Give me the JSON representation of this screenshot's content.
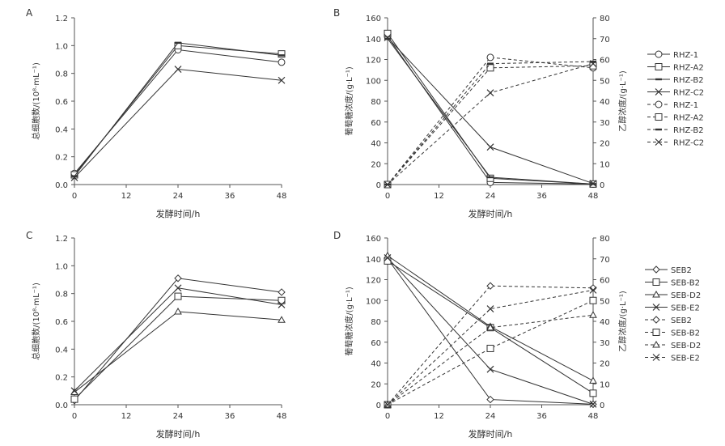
{
  "chart_data": [
    {
      "type": "line",
      "panel": "A",
      "x": [
        0,
        24,
        48
      ],
      "xlabel": "发酵时间/h",
      "ylabel": "总细胞数/(10⁸·mL⁻¹)",
      "xticks": [
        "0",
        "12",
        "24",
        "36",
        "48"
      ],
      "yticks": [
        "0.0",
        "0.2",
        "0.4",
        "0.6",
        "0.8",
        "1.0",
        "1.2"
      ],
      "xlim": [
        0,
        48
      ],
      "ylim": [
        0,
        1.2
      ],
      "series": [
        {
          "name": "RHZ-1",
          "marker": "circle",
          "dash": false,
          "values": [
            0.08,
            0.97,
            0.88
          ]
        },
        {
          "name": "RHZ-A2",
          "marker": "square",
          "dash": false,
          "values": [
            0.07,
            1.0,
            0.94
          ]
        },
        {
          "name": "RHZ-B2",
          "marker": "dash",
          "dash": false,
          "values": [
            0.06,
            1.02,
            0.93
          ]
        },
        {
          "name": "RHZ-C2",
          "marker": "x",
          "dash": false,
          "values": [
            0.05,
            0.83,
            0.75
          ]
        }
      ]
    },
    {
      "type": "line",
      "panel": "B",
      "x": [
        0,
        24,
        48
      ],
      "xlabel": "发酵时间/h",
      "ylabel": "葡萄糖浓度/(g·L⁻¹)",
      "y2label": "乙醇浓度/(g·L⁻¹)",
      "xticks": [
        "0",
        "12",
        "24",
        "36",
        "48"
      ],
      "yticks": [
        "0",
        "20",
        "40",
        "60",
        "80",
        "100",
        "120",
        "140",
        "160"
      ],
      "y2ticks": [
        "0",
        "10",
        "20",
        "30",
        "40",
        "50",
        "60",
        "70",
        "80"
      ],
      "xlim": [
        0,
        48
      ],
      "ylim": [
        0,
        160
      ],
      "y2lim": [
        0,
        80
      ],
      "series": [
        {
          "name": "RHZ-1",
          "marker": "circle",
          "dash": false,
          "axis": "left",
          "values": [
            142,
            2,
            0.5
          ]
        },
        {
          "name": "RHZ-A2",
          "marker": "square",
          "dash": false,
          "axis": "left",
          "values": [
            145,
            6,
            0.5
          ]
        },
        {
          "name": "RHZ-B2",
          "marker": "dash",
          "dash": false,
          "axis": "left",
          "values": [
            140,
            7,
            0.5
          ]
        },
        {
          "name": "RHZ-C2",
          "marker": "x",
          "dash": false,
          "axis": "left",
          "values": [
            141,
            36,
            1
          ]
        },
        {
          "name": "RHZ-1",
          "marker": "circle",
          "dash": true,
          "axis": "right",
          "values": [
            0,
            61,
            56
          ]
        },
        {
          "name": "RHZ-A2",
          "marker": "square",
          "dash": true,
          "axis": "right",
          "values": [
            0,
            56,
            57
          ]
        },
        {
          "name": "RHZ-B2",
          "marker": "dash",
          "dash": true,
          "axis": "right",
          "values": [
            0,
            58,
            59
          ]
        },
        {
          "name": "RHZ-C2",
          "marker": "x",
          "dash": true,
          "axis": "right",
          "values": [
            0,
            44,
            58
          ]
        }
      ],
      "legend": [
        "RHZ-1",
        "RHZ-A2",
        "RHZ-B2",
        "RHZ-C2",
        "RHZ-1",
        "RHZ-A2",
        "RHZ-B2",
        "RHZ-C2"
      ]
    },
    {
      "type": "line",
      "panel": "C",
      "x": [
        0,
        24,
        48
      ],
      "xlabel": "发酵时间/h",
      "ylabel": "总细胞数/(10⁸·mL⁻¹)",
      "xticks": [
        "0",
        "12",
        "24",
        "36",
        "48"
      ],
      "yticks": [
        "0.0",
        "0.2",
        "0.4",
        "0.6",
        "0.8",
        "1.0",
        "1.2"
      ],
      "xlim": [
        0,
        48
      ],
      "ylim": [
        0,
        1.2
      ],
      "series": [
        {
          "name": "SEB2",
          "marker": "diamond",
          "dash": false,
          "values": [
            0.03,
            0.91,
            0.81
          ]
        },
        {
          "name": "SEB-B2",
          "marker": "square",
          "dash": false,
          "values": [
            0.04,
            0.78,
            0.75
          ]
        },
        {
          "name": "SEB-D2",
          "marker": "triangle",
          "dash": false,
          "values": [
            0.09,
            0.67,
            0.61
          ]
        },
        {
          "name": "SEB-E2",
          "marker": "x",
          "dash": false,
          "values": [
            0.1,
            0.84,
            0.72
          ]
        }
      ]
    },
    {
      "type": "line",
      "panel": "D",
      "x": [
        0,
        24,
        48
      ],
      "xlabel": "发酵时间/h",
      "ylabel": "葡萄糖浓度/(g·L⁻¹)",
      "y2label": "乙醇浓度/(g·L⁻¹)",
      "xticks": [
        "0",
        "12",
        "24",
        "36",
        "48"
      ],
      "yticks": [
        "0",
        "20",
        "40",
        "60",
        "80",
        "100",
        "120",
        "140",
        "160"
      ],
      "y2ticks": [
        "0",
        "10",
        "20",
        "30",
        "40",
        "50",
        "60",
        "70",
        "80"
      ],
      "xlim": [
        0,
        48
      ],
      "ylim": [
        0,
        160
      ],
      "y2lim": [
        0,
        80
      ],
      "series": [
        {
          "name": "SEB2",
          "marker": "diamond",
          "dash": false,
          "axis": "left",
          "values": [
            140,
            5,
            0.5
          ]
        },
        {
          "name": "SEB-B2",
          "marker": "square",
          "dash": false,
          "axis": "left",
          "values": [
            138,
            74,
            11
          ]
        },
        {
          "name": "SEB-D2",
          "marker": "triangle",
          "dash": false,
          "axis": "left",
          "values": [
            143,
            75,
            23
          ]
        },
        {
          "name": "SEB-E2",
          "marker": "x",
          "dash": false,
          "axis": "left",
          "values": [
            141,
            34,
            0.5
          ]
        },
        {
          "name": "SEB2",
          "marker": "diamond",
          "dash": true,
          "axis": "right",
          "values": [
            0,
            57,
            56
          ]
        },
        {
          "name": "SEB-B2",
          "marker": "square",
          "dash": true,
          "axis": "right",
          "values": [
            0,
            27,
            50
          ]
        },
        {
          "name": "SEB-D2",
          "marker": "triangle",
          "dash": true,
          "axis": "right",
          "values": [
            0,
            37,
            43
          ]
        },
        {
          "name": "SEB-E2",
          "marker": "x",
          "dash": true,
          "axis": "right",
          "values": [
            0,
            46,
            55
          ]
        }
      ],
      "legend": [
        "SEB2",
        "SEB-B2",
        "SEB-D2",
        "SEB-E2",
        "SEB2",
        "SEB-B2",
        "SEB-D2",
        "SEB-E2"
      ]
    }
  ],
  "colors": {
    "line": "#333333",
    "axis": "#555555",
    "marker_fill": "#ffffff"
  }
}
